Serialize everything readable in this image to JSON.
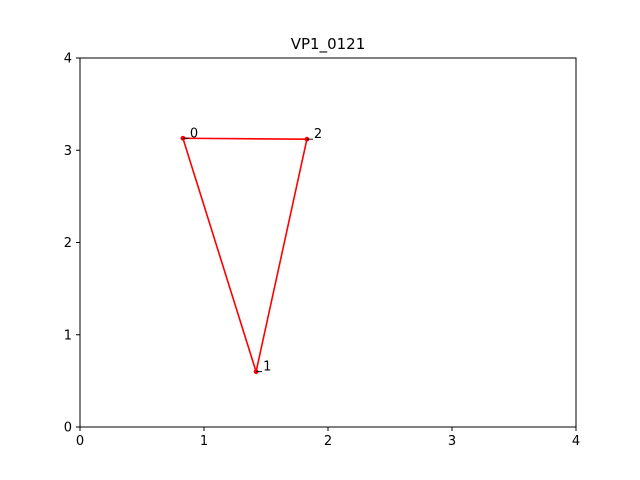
{
  "chart_data": {
    "type": "line",
    "title": "VP1_0121",
    "xlabel": "",
    "ylabel": "",
    "xlim": [
      0,
      4
    ],
    "ylim": [
      0,
      4
    ],
    "xticks": [
      0,
      1,
      2,
      3,
      4
    ],
    "yticks": [
      0,
      1,
      2,
      3,
      4
    ],
    "grid": false,
    "line_color": "#ff0000",
    "closed": true,
    "points": [
      {
        "label": "0",
        "x": 0.83,
        "y": 3.13
      },
      {
        "label": "1",
        "x": 1.42,
        "y": 0.6
      },
      {
        "label": "2",
        "x": 1.83,
        "y": 3.12
      }
    ]
  }
}
